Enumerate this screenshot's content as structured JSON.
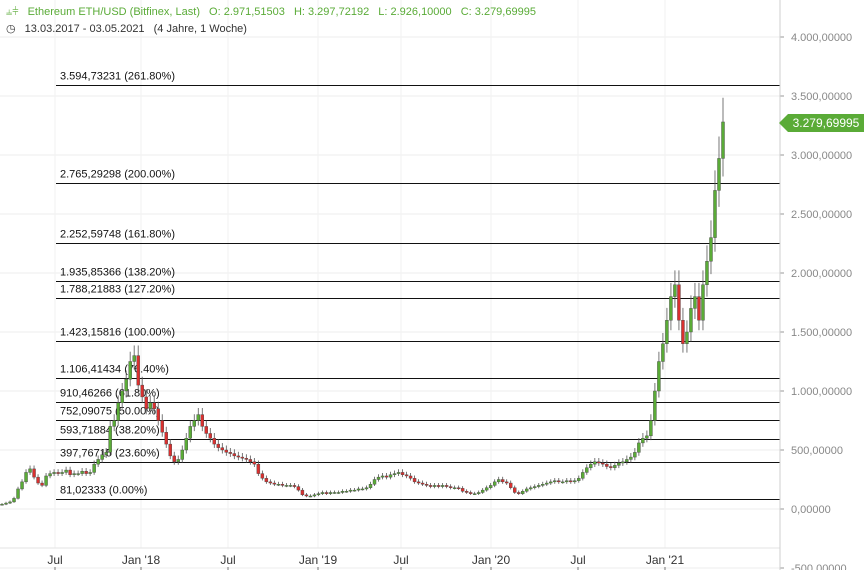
{
  "header": {
    "symbol": "Ethereum ETH/USD (Bitfinex, Last)",
    "open": "O: 2.971,51503",
    "high": "H: 3.297,72192",
    "low": "L: 2.926,10000",
    "close": "C: 3.279,69995",
    "date_range": "13.03.2017 - 03.05.2021",
    "period": "(4 Jahre, 1 Woche)",
    "accent_color": "#5aab37"
  },
  "current_price_label": "3.279,69995",
  "chart_data": {
    "type": "candlestick",
    "x_tick_labels": [
      "Jul",
      "Jan '18",
      "Jul",
      "Jan '19",
      "Jul",
      "Jan '20",
      "Jul",
      "Jan '21"
    ],
    "y_tick_labels": [
      "4.000,00000",
      "3.500,00000",
      "3.000,00000",
      "2.500,00000",
      "2.000,00000",
      "1.500,00000",
      "1.000,00000",
      "500,00000",
      "0,00000",
      "-500,00000"
    ],
    "y_ticks": [
      4000,
      3500,
      3000,
      2500,
      2000,
      1500,
      1000,
      500,
      0,
      -500
    ],
    "ylim": [
      -500,
      4300
    ],
    "up_color": "#5aab37",
    "down_color": "#d9302f",
    "fib_levels": [
      {
        "value": 3594.73231,
        "label": "3.594,73231 (261.80%)"
      },
      {
        "value": 2765.29298,
        "label": "2.765,29298 (200.00%)"
      },
      {
        "value": 2252.59748,
        "label": "2.252,59748 (161.80%)"
      },
      {
        "value": 1935.85366,
        "label": "1.935,85366 (138.20%)"
      },
      {
        "value": 1788.21883,
        "label": "1.788,21883 (127.20%)"
      },
      {
        "value": 1423.15816,
        "label": "1.423,15816 (100.00%)"
      },
      {
        "value": 1106.41434,
        "label": "1.106,41434 (76.40%)"
      },
      {
        "value": 910.46266,
        "label": "910,46266 (61.80%)"
      },
      {
        "value": 752.09075,
        "label": "752,09075 (50.00%)"
      },
      {
        "value": 593.71884,
        "label": "593,71884 (38.20%)"
      },
      {
        "value": 397.76715,
        "label": "397,76715 (23.60%)"
      },
      {
        "value": 81.02333,
        "label": "81,02333 (0.00%)"
      }
    ],
    "series": [
      {
        "values": [
          40,
          50,
          60,
          90,
          170,
          230,
          310,
          340,
          270,
          220,
          200,
          280,
          300,
          310,
          300,
          310,
          330,
          290,
          300,
          300,
          320,
          300,
          310,
          380,
          420,
          460,
          480,
          700,
          750,
          900,
          1000,
          1100,
          1250,
          1300,
          1050,
          950,
          850,
          900,
          850,
          750,
          650,
          550,
          450,
          400,
          420,
          500,
          600,
          700,
          750,
          800,
          700,
          640,
          600,
          550,
          520,
          500,
          480,
          470,
          450,
          440,
          430,
          420,
          400,
          380,
          300,
          260,
          230,
          220,
          210,
          210,
          200,
          200,
          200,
          190,
          160,
          120,
          110,
          110,
          120,
          130,
          140,
          130,
          140,
          140,
          140,
          150,
          150,
          160,
          160,
          170,
          170,
          180,
          210,
          250,
          270,
          280,
          270,
          290,
          300,
          310,
          290,
          280,
          260,
          230,
          220,
          210,
          200,
          190,
          200,
          190,
          200,
          190,
          180,
          180,
          175,
          150,
          140,
          130,
          130,
          140,
          160,
          180,
          200,
          230,
          250,
          230,
          220,
          180,
          140,
          130,
          150,
          170,
          180,
          190,
          200,
          210,
          220,
          230,
          240,
          230,
          230,
          240,
          230,
          240,
          260,
          310,
          350,
          380,
          400,
          390,
          380,
          360,
          350,
          370,
          390,
          400,
          420,
          440,
          480,
          560,
          600,
          620,
          750,
          1000,
          1250,
          1400,
          1600,
          1800,
          1900,
          1600,
          1400,
          1500,
          1700,
          1800,
          1600,
          1900,
          2100,
          2300,
          2700,
          2971,
          3280
        ]
      }
    ]
  }
}
